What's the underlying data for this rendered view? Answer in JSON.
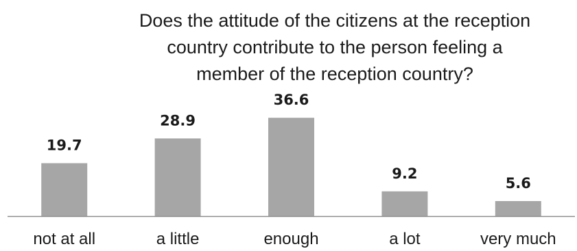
{
  "chart_data": {
    "type": "bar",
    "title_lines": [
      "Does the attitude of the citizens at the reception",
      "country contribute to the person feeling a",
      "member of the reception country?"
    ],
    "categories": [
      "not at all",
      "a little",
      "enough",
      "a lot",
      "very much"
    ],
    "values": [
      19.7,
      28.9,
      36.6,
      9.2,
      5.6
    ],
    "value_labels": [
      "19.7",
      "28.9",
      "36.6",
      "9.2",
      "5.6"
    ],
    "xlabel": "",
    "ylabel": "",
    "ylim": [
      0,
      40
    ],
    "grid": false,
    "legend": "none",
    "colors": {
      "bar": "#a6a6a6",
      "axis": "#8c8c8c",
      "text": "#1a1a1a"
    }
  }
}
